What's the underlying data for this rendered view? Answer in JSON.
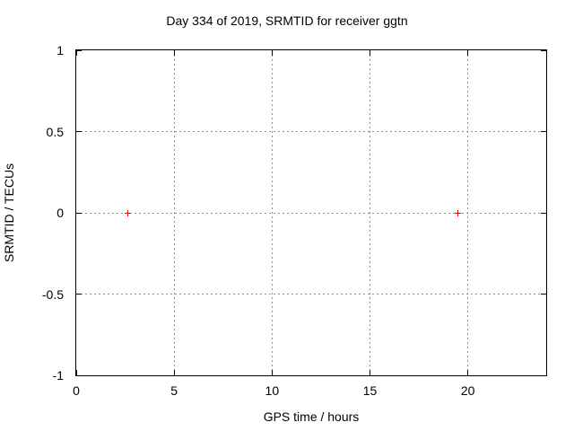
{
  "window": {
    "background": "#ffffff"
  },
  "chart_data": {
    "type": "scatter",
    "title": "Day 334 of 2019, SRMTID for receiver ggtn",
    "xlabel": "GPS time / hours",
    "ylabel": "SRMTID / TECUs",
    "xlim": [
      0,
      24
    ],
    "ylim": [
      -1,
      1
    ],
    "grid": true,
    "legend": "none",
    "xticks": [
      {
        "value": 0,
        "label": "0"
      },
      {
        "value": 5,
        "label": "5"
      },
      {
        "value": 10,
        "label": "10"
      },
      {
        "value": 15,
        "label": "15"
      },
      {
        "value": 20,
        "label": "20"
      }
    ],
    "yticks": [
      {
        "value": 1,
        "label": "1"
      },
      {
        "value": 0.5,
        "label": "0.5"
      },
      {
        "value": 0,
        "label": "0"
      },
      {
        "value": -0.5,
        "label": "-0.5"
      },
      {
        "value": -1,
        "label": "-1"
      }
    ],
    "series": [
      {
        "name": "SRMTID",
        "marker": "plus",
        "color": "#ff0000",
        "points": [
          {
            "x": 2.65,
            "y": 0
          },
          {
            "x": 19.5,
            "y": 0
          }
        ]
      }
    ],
    "colors": {
      "grid": "#909090",
      "axis": "#000000",
      "text": "#000000"
    }
  }
}
